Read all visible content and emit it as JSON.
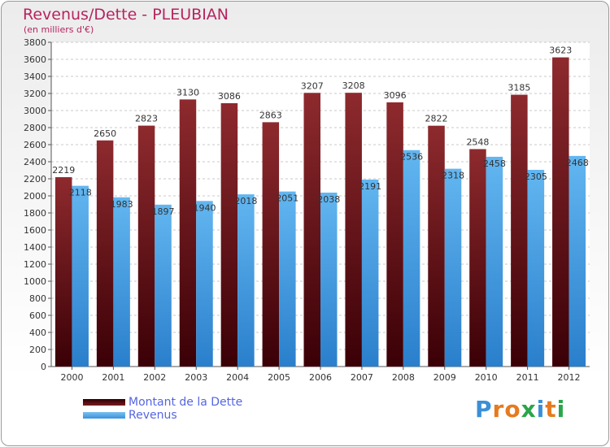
{
  "title": "Revenus/Dette - PLEUBIAN",
  "subtitle": "(en milliers d'€)",
  "colors": {
    "debt": "#7a1a1e",
    "revenue": "#4aa3e6",
    "title": "#b6245e",
    "legend_text": "#5565e0"
  },
  "logo": {
    "text": "Proxiti",
    "letters": [
      "P",
      "r",
      "o",
      "x",
      "i",
      "t",
      "i"
    ],
    "letter_colors": [
      "#3a8fd8",
      "#e67a1e",
      "#e67a1e",
      "#2aa64a",
      "#3a8fd8",
      "#e67a1e",
      "#2aa64a"
    ]
  },
  "legend": {
    "position": "bottom-left",
    "items": [
      {
        "label": "Montant de la Dette",
        "color": "#6a0e12",
        "icon": "swatch-bar"
      },
      {
        "label": "Revenus",
        "color": "#4aa3e6",
        "icon": "swatch-bar"
      }
    ]
  },
  "chart_data": {
    "type": "bar",
    "title": "Revenus/Dette - PLEUBIAN",
    "subtitle": "(en milliers d'€)",
    "categories": [
      "2000",
      "2001",
      "2002",
      "2003",
      "2004",
      "2005",
      "2006",
      "2007",
      "2008",
      "2009",
      "2010",
      "2011",
      "2012"
    ],
    "series": [
      {
        "name": "Montant de la Dette",
        "values": [
          2219,
          2650,
          2823,
          3130,
          3086,
          2863,
          3207,
          3208,
          3096,
          2822,
          2548,
          3185,
          3623
        ]
      },
      {
        "name": "Revenus",
        "values": [
          2118,
          1983,
          1897,
          1940,
          2018,
          2051,
          2038,
          2191,
          2536,
          2318,
          2458,
          2305,
          2468
        ]
      }
    ],
    "ylim": [
      0,
      3800
    ],
    "yticks": [
      0,
      200,
      400,
      600,
      800,
      1000,
      1200,
      1400,
      1600,
      1800,
      2000,
      2200,
      2400,
      2600,
      2800,
      3000,
      3200,
      3400,
      3600,
      3800
    ],
    "grid": true,
    "legend": "bottom-left"
  }
}
